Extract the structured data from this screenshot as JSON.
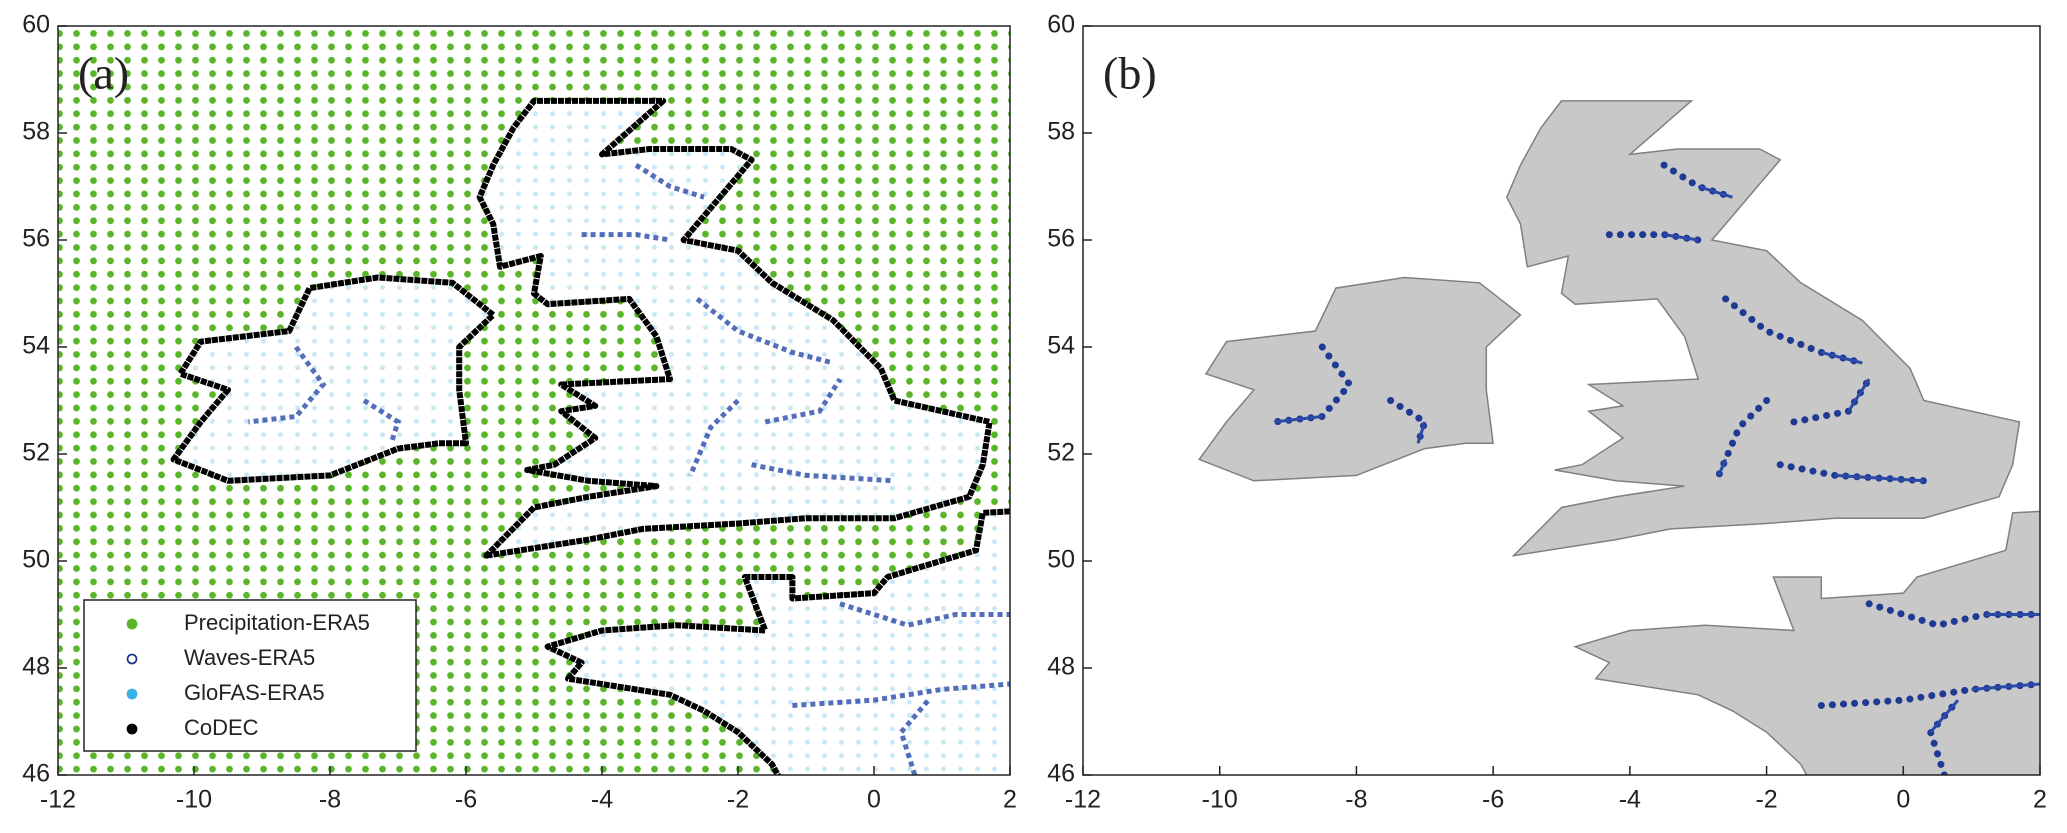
{
  "chart_data": [
    {
      "type": "map",
      "label": "(a)",
      "xlim": [
        -12,
        2
      ],
      "ylim": [
        46,
        60
      ],
      "xticks": [
        -12,
        -10,
        -8,
        -6,
        -4,
        -2,
        0,
        2
      ],
      "yticks": [
        46,
        48,
        50,
        52,
        54,
        56,
        58,
        60
      ],
      "legend": "lower left",
      "series": [
        {
          "name": "Precipitation-ERA5",
          "color": "#5ab52a",
          "marker": "filled"
        },
        {
          "name": "Waves-ERA5",
          "color": "#1f3a93",
          "marker": "open"
        },
        {
          "name": "GloFAS-ERA5",
          "color": "#3ab0e6",
          "marker": "filled"
        },
        {
          "name": "CoDEC",
          "color": "#000000",
          "marker": "filled"
        }
      ]
    },
    {
      "type": "map",
      "label": "(b)",
      "xlim": [
        -12,
        2
      ],
      "ylim": [
        46,
        60
      ],
      "xticks": [
        -12,
        -10,
        -8,
        -6,
        -4,
        -2,
        0,
        2
      ],
      "yticks": [
        46,
        48,
        50,
        52,
        54,
        56,
        58,
        60
      ]
    }
  ]
}
